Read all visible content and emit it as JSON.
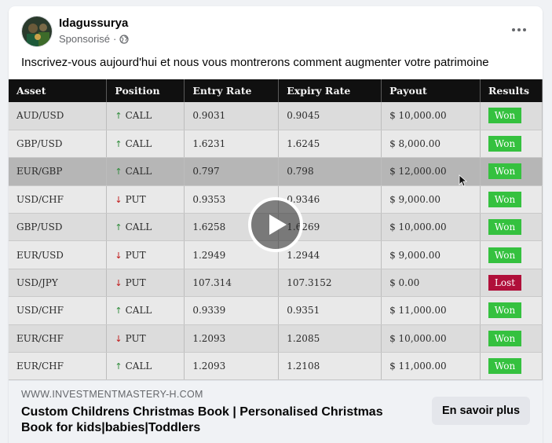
{
  "post": {
    "page_name": "Idagussurya",
    "sponsored_label": "Sponsorisé",
    "separator": "·",
    "text": "Inscrivez-vous aujourd'hui et nous vous montrerons comment augmenter votre patrimoine"
  },
  "icons": {
    "more": "more-horizontal-icon",
    "privacy": "globe-icon",
    "play": "play-icon"
  },
  "table": {
    "headers": [
      "Asset",
      "Position",
      "Entry Rate",
      "Expiry Rate",
      "Payout",
      "Results"
    ],
    "rows": [
      {
        "asset": "AUD/USD",
        "direction": "up",
        "position": "CALL",
        "entry": "0.9031",
        "expiry": "0.9045",
        "payout": "$ 10,000.00",
        "result": "Won"
      },
      {
        "asset": "GBP/USD",
        "direction": "up",
        "position": "CALL",
        "entry": "1.6231",
        "expiry": "1.6245",
        "payout": "$ 8,000.00",
        "result": "Won"
      },
      {
        "asset": "EUR/GBP",
        "direction": "up",
        "position": "CALL",
        "entry": "0.797",
        "expiry": "0.798",
        "payout": "$ 12,000.00",
        "result": "Won"
      },
      {
        "asset": "USD/CHF",
        "direction": "down",
        "position": "PUT",
        "entry": "0.9353",
        "expiry": "0.9346",
        "payout": "$ 9,000.00",
        "result": "Won"
      },
      {
        "asset": "GBP/USD",
        "direction": "up",
        "position": "CALL",
        "entry": "1.6258",
        "expiry": "1.6269",
        "payout": "$ 10,000.00",
        "result": "Won"
      },
      {
        "asset": "EUR/USD",
        "direction": "down",
        "position": "PUT",
        "entry": "1.2949",
        "expiry": "1.2944",
        "payout": "$ 9,000.00",
        "result": "Won"
      },
      {
        "asset": "USD/JPY",
        "direction": "down",
        "position": "PUT",
        "entry": "107.314",
        "expiry": "107.3152",
        "payout": "$ 0.00",
        "result": "Lost"
      },
      {
        "asset": "USD/CHF",
        "direction": "up",
        "position": "CALL",
        "entry": "0.9339",
        "expiry": "0.9351",
        "payout": "$ 11,000.00",
        "result": "Won"
      },
      {
        "asset": "EUR/CHF",
        "direction": "down",
        "position": "PUT",
        "entry": "1.2093",
        "expiry": "1.2085",
        "payout": "$ 10,000.00",
        "result": "Won"
      },
      {
        "asset": "EUR/CHF",
        "direction": "up",
        "position": "CALL",
        "entry": "1.2093",
        "expiry": "1.2108",
        "payout": "$ 11,000.00",
        "result": "Won"
      }
    ]
  },
  "link": {
    "domain": "WWW.INVESTMENTMASTERY-H.COM",
    "headline": "Custom Childrens Christmas Book | Personalised Christmas Book for kids|babies|Toddlers",
    "cta_label": "En savoir plus"
  },
  "colors": {
    "won": "#35c13f",
    "lost": "#b0103a",
    "call_arrow": "#2e8b3a",
    "put_arrow": "#c01818"
  }
}
